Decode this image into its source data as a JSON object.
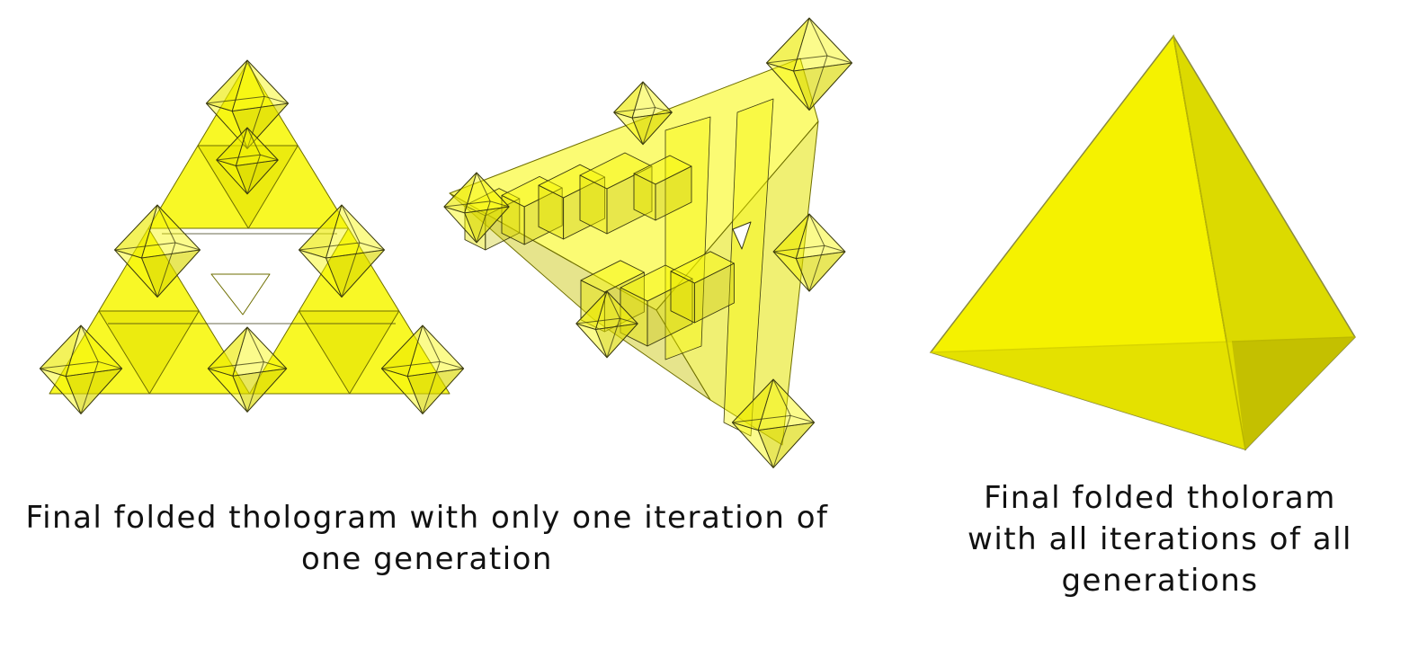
{
  "captions": {
    "left": {
      "line1": "Final folded thologram with only one iteration of",
      "line2": "one generation"
    },
    "right": {
      "line1": "Final folded tholoram",
      "line2": "with all iterations of all",
      "line3": "generations"
    }
  },
  "colors": {
    "face_light": "#f7f700",
    "face_mid": "#e4e300",
    "face_dark": "#c7c300",
    "edge": "#6e6e00",
    "wire": "#3a3a10",
    "background": "#ffffff"
  }
}
